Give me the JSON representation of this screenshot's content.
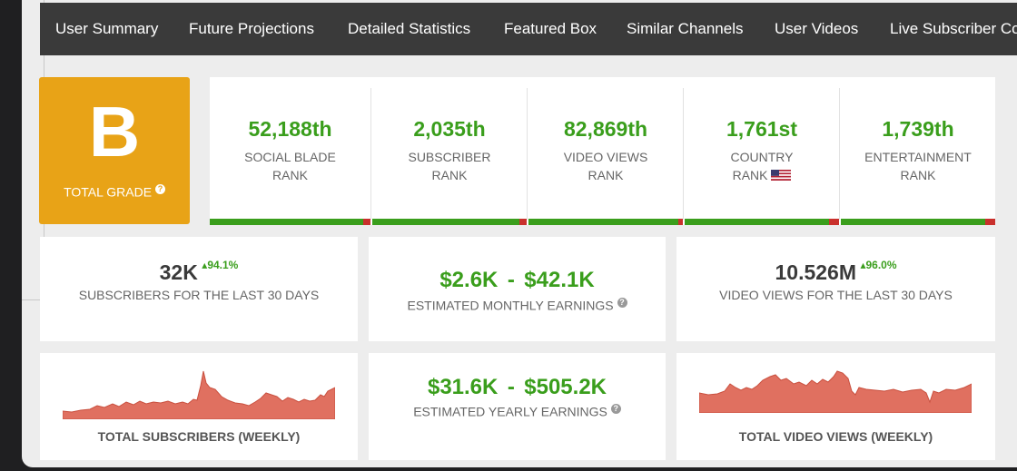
{
  "nav": {
    "items": [
      "User Summary",
      "Future Projections",
      "Detailed Statistics",
      "Featured Box",
      "Similar Channels",
      "User Videos",
      "Live Subscriber Co"
    ]
  },
  "grade": {
    "letter": "B",
    "label": "TOTAL GRADE",
    "help": "?"
  },
  "ranks": [
    {
      "value": "52,188th",
      "line1": "SOCIAL BLADE",
      "line2": "RANK"
    },
    {
      "value": "2,035th",
      "line1": "SUBSCRIBER",
      "line2": "RANK"
    },
    {
      "value": "82,869th",
      "line1": "VIDEO VIEWS",
      "line2": "RANK"
    },
    {
      "value": "1,761st",
      "line1": "COUNTRY",
      "line2": "RANK"
    },
    {
      "value": "1,739th",
      "line1": "ENTERTAINMENT",
      "line2": "RANK"
    }
  ],
  "subs30": {
    "value": "32K",
    "change": "94.1%",
    "label": "SUBSCRIBERS FOR THE LAST 30 DAYS"
  },
  "monthly": {
    "low": "$2.6K",
    "sep": "-",
    "high": "$42.1K",
    "label": "ESTIMATED MONTHLY EARNINGS",
    "help": "?"
  },
  "views30": {
    "value": "10.526M",
    "change": "96.0%",
    "label": "VIDEO VIEWS FOR THE LAST 30 DAYS"
  },
  "yearly": {
    "low": "$31.6K",
    "sep": "-",
    "high": "$505.2K",
    "label": "ESTIMATED YEARLY EARNINGS",
    "help": "?"
  },
  "charts": {
    "subs_label": "TOTAL SUBSCRIBERS (WEEKLY)",
    "views_label": "TOTAL VIDEO VIEWS (WEEKLY)"
  },
  "colors": {
    "green": "#3a9e1c",
    "orange": "#e8a317",
    "red": "#c9302c",
    "spark": "#e07060"
  }
}
